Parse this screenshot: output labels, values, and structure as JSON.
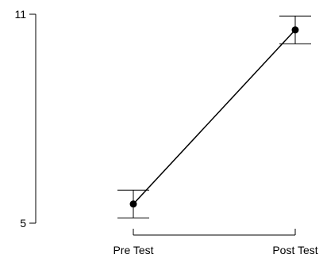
{
  "chart_data": {
    "type": "line",
    "title": "",
    "xlabel": "",
    "ylabel": "",
    "categories": [
      "Pre Test",
      "Post Test"
    ],
    "series": [
      {
        "values": [
          5.55,
          10.55
        ],
        "error_low": [
          5.15,
          10.15
        ],
        "error_high": [
          5.95,
          10.95
        ]
      }
    ],
    "ylim": [
      5,
      11
    ],
    "yticks": [
      "5",
      "11"
    ],
    "grid": false
  }
}
